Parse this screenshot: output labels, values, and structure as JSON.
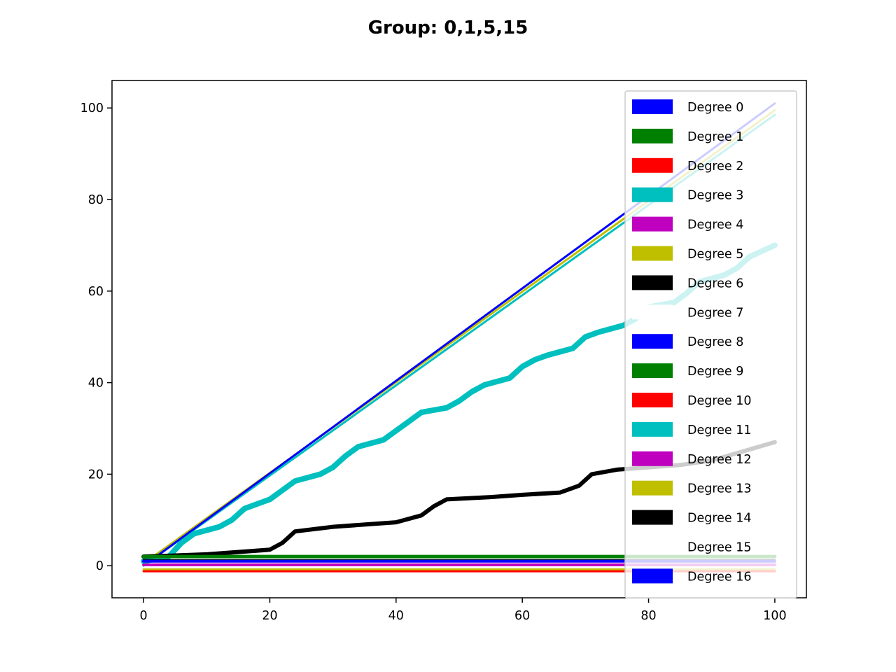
{
  "chart_data": {
    "type": "line",
    "title": "Group: 0,1,5,15",
    "xlabel": "",
    "ylabel": "",
    "xlim": [
      -5,
      105
    ],
    "ylim": [
      -7,
      106
    ],
    "xticks": [
      0,
      20,
      40,
      60,
      80,
      100
    ],
    "yticks": [
      0,
      20,
      40,
      60,
      80,
      100
    ],
    "grid": false,
    "legend_position": "top-right",
    "legend": [
      {
        "label": "Degree 0",
        "color": "#0000ff"
      },
      {
        "label": "Degree 1",
        "color": "#008000"
      },
      {
        "label": "Degree 2",
        "color": "#ff0000"
      },
      {
        "label": "Degree 3",
        "color": "#00bfbf"
      },
      {
        "label": "Degree 4",
        "color": "#bf00bf"
      },
      {
        "label": "Degree 5",
        "color": "#bfbf00"
      },
      {
        "label": "Degree 6",
        "color": "#000000"
      },
      {
        "label": "Degree 7",
        "color": "#ffffff"
      },
      {
        "label": "Degree 8",
        "color": "#0000ff"
      },
      {
        "label": "Degree 9",
        "color": "#008000"
      },
      {
        "label": "Degree 10",
        "color": "#ff0000"
      },
      {
        "label": "Degree 11",
        "color": "#00bfbf"
      },
      {
        "label": "Degree 12",
        "color": "#bf00bf"
      },
      {
        "label": "Degree 13",
        "color": "#bfbf00"
      },
      {
        "label": "Degree 14",
        "color": "#000000"
      },
      {
        "label": "Degree 15",
        "color": "#ffffff"
      },
      {
        "label": "Degree 16",
        "color": "#0000ff"
      }
    ],
    "series": [
      {
        "color": "#00bfbf",
        "width": 3,
        "x": [
          0,
          100
        ],
        "y": [
          0,
          98.5
        ]
      },
      {
        "color": "#bfbf00",
        "width": 3,
        "x": [
          0,
          100
        ],
        "y": [
          0.5,
          99.5
        ]
      },
      {
        "color": "#0000ff",
        "width": 3,
        "x": [
          1,
          100
        ],
        "y": [
          1,
          101
        ]
      },
      {
        "color": "#00bfbf",
        "width": 8,
        "x": [
          0,
          4,
          6,
          8,
          12,
          14,
          16,
          20,
          22,
          24,
          28,
          30,
          32,
          34,
          38,
          40,
          42,
          44,
          48,
          50,
          52,
          54,
          58,
          60,
          62,
          64,
          68,
          70,
          72,
          76,
          78,
          80,
          84,
          86,
          88,
          92,
          94,
          96,
          100
        ],
        "y": [
          1,
          2,
          5,
          7,
          8.5,
          10,
          12.5,
          14.5,
          16.5,
          18.5,
          20,
          21.5,
          24,
          26,
          27.5,
          29.5,
          31.5,
          33.5,
          34.5,
          36,
          38,
          39.5,
          41,
          43.5,
          45,
          46,
          47.5,
          50,
          51,
          52.5,
          54,
          56.5,
          57.5,
          59.5,
          62,
          63.5,
          65,
          67.5,
          70
        ]
      },
      {
        "color": "#000000",
        "width": 6,
        "x": [
          0,
          10,
          20,
          22,
          24,
          30,
          40,
          44,
          46,
          48,
          55,
          60,
          66,
          69,
          71,
          75,
          80,
          85,
          90,
          95,
          100
        ],
        "y": [
          2,
          2.5,
          3.5,
          5,
          7.5,
          8.5,
          9.5,
          11,
          13,
          14.5,
          15,
          15.5,
          16,
          17.5,
          20,
          21,
          21.5,
          22,
          23,
          25,
          27
        ]
      },
      {
        "color": "#008000",
        "width": 5,
        "x": [
          0,
          100
        ],
        "y": [
          2,
          2
        ]
      },
      {
        "color": "#000000",
        "width": 3,
        "x": [
          0,
          100
        ],
        "y": [
          1.2,
          1.2
        ]
      },
      {
        "color": "#0000ff",
        "width": 4,
        "x": [
          0,
          100
        ],
        "y": [
          1,
          1
        ]
      },
      {
        "color": "#bf00bf",
        "width": 4,
        "x": [
          0,
          100
        ],
        "y": [
          0.2,
          0.2
        ]
      },
      {
        "color": "#bfbf00",
        "width": 3,
        "x": [
          0,
          100
        ],
        "y": [
          -0.8,
          -0.8
        ]
      },
      {
        "color": "#ff0000",
        "width": 3,
        "x": [
          0,
          100
        ],
        "y": [
          -1.2,
          -1.2
        ]
      }
    ]
  }
}
